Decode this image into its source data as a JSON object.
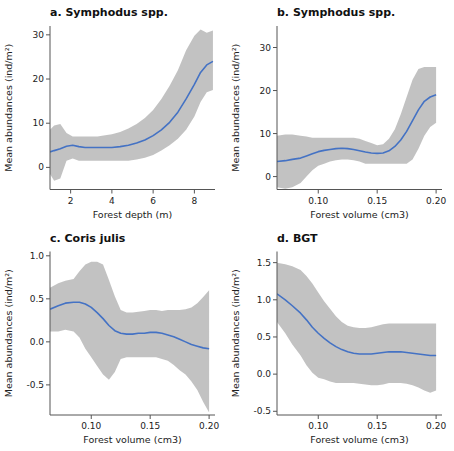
{
  "chart_data": [
    {
      "type": "line",
      "title": "a. Symphodus spp.",
      "x_label": "Forest depth (m)",
      "y_label": "Mean abundances (ind/m²)",
      "xlim": [
        1.0,
        9.0
      ],
      "ylim": [
        -5,
        32
      ],
      "xticks": [
        2,
        4,
        6,
        8
      ],
      "yticks": [
        0,
        10,
        20,
        30
      ],
      "x": [
        1.0,
        1.2,
        1.5,
        1.8,
        2.1,
        2.4,
        2.7,
        3.0,
        3.3,
        3.6,
        4.0,
        4.4,
        4.8,
        5.2,
        5.6,
        6.0,
        6.4,
        6.8,
        7.2,
        7.6,
        8.0,
        8.3,
        8.6,
        8.9
      ],
      "series": [
        {
          "type": "area",
          "color": "#999999",
          "upper": [
            8.5,
            9.5,
            9.8,
            7.8,
            7.0,
            7.0,
            7.0,
            7.0,
            7.0,
            7.2,
            7.5,
            8.0,
            8.8,
            9.8,
            11.2,
            13.0,
            15.5,
            18.5,
            22.0,
            26.5,
            29.8,
            31.2,
            30.5,
            31.0
          ],
          "lower": [
            -1.5,
            -3.0,
            -2.5,
            1.5,
            2.0,
            1.5,
            1.5,
            1.5,
            1.5,
            1.5,
            1.5,
            1.5,
            1.5,
            1.8,
            2.2,
            2.8,
            3.8,
            5.0,
            6.5,
            8.5,
            11.5,
            14.8,
            17.0,
            17.5
          ]
        },
        {
          "type": "line",
          "color": "#4472c4",
          "values": [
            3.5,
            3.8,
            4.2,
            4.8,
            5.0,
            4.7,
            4.5,
            4.5,
            4.5,
            4.5,
            4.5,
            4.7,
            5.0,
            5.5,
            6.2,
            7.2,
            8.5,
            10.2,
            12.5,
            15.5,
            18.8,
            21.5,
            23.2,
            24.0
          ]
        }
      ]
    },
    {
      "type": "line",
      "title": "b. Symphodus spp.",
      "x_label": "Forest volume (cm3)",
      "y_label": "Mean abundances (ind/m²)",
      "xlim": [
        0.065,
        0.205
      ],
      "ylim": [
        -3,
        35
      ],
      "xticks": [
        {
          "value": 0.1,
          "label": "0.10"
        },
        {
          "value": 0.15,
          "label": "0.15"
        },
        {
          "value": 0.2,
          "label": "0.20"
        }
      ],
      "yticks": [
        0,
        10,
        20,
        30
      ],
      "x": [
        0.065,
        0.072,
        0.078,
        0.085,
        0.09,
        0.095,
        0.1,
        0.105,
        0.11,
        0.115,
        0.12,
        0.125,
        0.13,
        0.135,
        0.14,
        0.145,
        0.15,
        0.155,
        0.16,
        0.165,
        0.17,
        0.175,
        0.18,
        0.185,
        0.19,
        0.195,
        0.2
      ],
      "series": [
        {
          "type": "area",
          "color": "#999999",
          "upper": [
            9.5,
            9.8,
            9.8,
            9.5,
            9.3,
            9.0,
            9.0,
            9.0,
            9.0,
            9.0,
            9.0,
            9.0,
            9.0,
            8.8,
            8.3,
            7.8,
            7.3,
            7.5,
            8.8,
            11.0,
            14.5,
            18.5,
            22.5,
            25.0,
            25.5,
            25.5,
            25.5
          ],
          "lower": [
            -2.5,
            -2.8,
            -2.5,
            -1.5,
            0.0,
            1.5,
            2.5,
            3.0,
            3.5,
            3.8,
            4.0,
            4.0,
            3.8,
            3.5,
            3.0,
            3.0,
            3.0,
            3.0,
            3.0,
            3.0,
            3.0,
            3.0,
            4.0,
            6.5,
            9.5,
            11.5,
            12.5
          ]
        },
        {
          "type": "line",
          "color": "#4472c4",
          "values": [
            3.5,
            3.7,
            4.0,
            4.3,
            4.8,
            5.3,
            5.8,
            6.1,
            6.3,
            6.5,
            6.6,
            6.5,
            6.3,
            6.0,
            5.7,
            5.5,
            5.4,
            5.5,
            6.0,
            7.0,
            8.5,
            10.5,
            13.0,
            15.5,
            17.5,
            18.5,
            19.0
          ]
        }
      ]
    },
    {
      "type": "line",
      "title": "c. Coris julis",
      "x_label": "Forest volume (cm3)",
      "y_label": "Mean abundances (ind/m²)",
      "xlim": [
        0.065,
        0.205
      ],
      "ylim": [
        -0.85,
        1.05
      ],
      "xticks": [
        {
          "value": 0.1,
          "label": "0.10"
        },
        {
          "value": 0.15,
          "label": "0.15"
        },
        {
          "value": 0.2,
          "label": "0.20"
        }
      ],
      "yticks": [
        -0.5,
        {
          "value": 0.0,
          "label": "0.0"
        },
        0.5,
        {
          "value": 1.0,
          "label": "1.0"
        }
      ],
      "x": [
        0.065,
        0.072,
        0.078,
        0.085,
        0.09,
        0.095,
        0.1,
        0.105,
        0.11,
        0.115,
        0.12,
        0.125,
        0.13,
        0.135,
        0.14,
        0.145,
        0.15,
        0.155,
        0.16,
        0.165,
        0.17,
        0.175,
        0.18,
        0.185,
        0.19,
        0.195,
        0.2
      ],
      "series": [
        {
          "type": "area",
          "color": "#999999",
          "upper": [
            0.63,
            0.68,
            0.71,
            0.73,
            0.82,
            0.9,
            0.93,
            0.93,
            0.9,
            0.72,
            0.53,
            0.37,
            0.34,
            0.34,
            0.35,
            0.36,
            0.37,
            0.37,
            0.36,
            0.37,
            0.37,
            0.37,
            0.38,
            0.4,
            0.45,
            0.52,
            0.6
          ],
          "lower": [
            0.12,
            0.12,
            0.14,
            0.12,
            0.05,
            -0.08,
            -0.18,
            -0.28,
            -0.38,
            -0.44,
            -0.35,
            -0.2,
            -0.18,
            -0.18,
            -0.18,
            -0.18,
            -0.18,
            -0.18,
            -0.2,
            -0.22,
            -0.27,
            -0.33,
            -0.38,
            -0.46,
            -0.56,
            -0.7,
            -0.82
          ]
        },
        {
          "type": "line",
          "color": "#4472c4",
          "values": [
            0.38,
            0.42,
            0.45,
            0.46,
            0.46,
            0.44,
            0.4,
            0.34,
            0.27,
            0.19,
            0.13,
            0.1,
            0.09,
            0.09,
            0.1,
            0.1,
            0.11,
            0.11,
            0.1,
            0.08,
            0.06,
            0.03,
            0.0,
            -0.03,
            -0.05,
            -0.07,
            -0.08
          ]
        }
      ]
    },
    {
      "type": "line",
      "title": "d. BGT",
      "x_label": "Forest volume (cm3)",
      "y_label": "Mean abundances (ind/m²)",
      "xlim": [
        0.065,
        0.205
      ],
      "ylim": [
        -0.55,
        1.65
      ],
      "xticks": [
        {
          "value": 0.1,
          "label": "0.10"
        },
        {
          "value": 0.15,
          "label": "0.15"
        },
        {
          "value": 0.2,
          "label": "0.20"
        }
      ],
      "yticks": [
        -0.5,
        {
          "value": 0.0,
          "label": "0.0"
        },
        0.5,
        {
          "value": 1.0,
          "label": "1.0"
        },
        1.5
      ],
      "x": [
        0.065,
        0.072,
        0.078,
        0.085,
        0.09,
        0.095,
        0.1,
        0.105,
        0.11,
        0.115,
        0.12,
        0.125,
        0.13,
        0.135,
        0.14,
        0.145,
        0.15,
        0.155,
        0.16,
        0.165,
        0.17,
        0.175,
        0.18,
        0.185,
        0.19,
        0.195,
        0.2
      ],
      "series": [
        {
          "type": "area",
          "color": "#999999",
          "upper": [
            1.5,
            1.48,
            1.45,
            1.4,
            1.32,
            1.22,
            1.1,
            0.98,
            0.88,
            0.78,
            0.7,
            0.65,
            0.63,
            0.62,
            0.62,
            0.63,
            0.65,
            0.67,
            0.68,
            0.68,
            0.68,
            0.68,
            0.68,
            0.68,
            0.68,
            0.68,
            0.68
          ],
          "lower": [
            0.7,
            0.55,
            0.4,
            0.25,
            0.12,
            0.02,
            -0.05,
            -0.07,
            -0.1,
            -0.12,
            -0.12,
            -0.12,
            -0.12,
            -0.13,
            -0.14,
            -0.15,
            -0.15,
            -0.14,
            -0.12,
            -0.12,
            -0.12,
            -0.13,
            -0.15,
            -0.18,
            -0.22,
            -0.25,
            -0.22
          ]
        },
        {
          "type": "line",
          "color": "#4472c4",
          "values": [
            1.08,
            1.0,
            0.92,
            0.82,
            0.73,
            0.63,
            0.55,
            0.48,
            0.42,
            0.37,
            0.33,
            0.3,
            0.28,
            0.27,
            0.27,
            0.27,
            0.28,
            0.29,
            0.3,
            0.3,
            0.3,
            0.29,
            0.28,
            0.27,
            0.26,
            0.25,
            0.25
          ]
        }
      ]
    }
  ]
}
